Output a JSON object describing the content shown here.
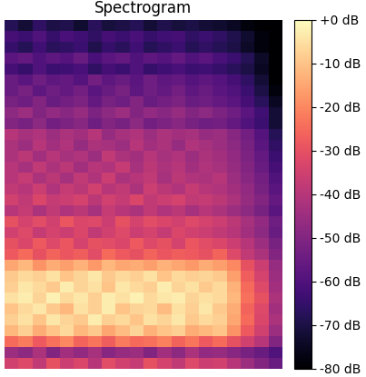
{
  "chart_data": {
    "type": "heatmap",
    "title": "Spectrogram",
    "tick_labels": false,
    "cells": [
      [
        -35,
        -32,
        -38,
        -30,
        -36,
        -33,
        -40,
        -31,
        -35,
        -37,
        -30,
        -34,
        -38,
        -32,
        -36,
        -35,
        -40,
        -45,
        -50,
        -55
      ],
      [
        -45,
        -48,
        -42,
        -50,
        -44,
        -47,
        -43,
        -49,
        -46,
        -45,
        -50,
        -44,
        -48,
        -42,
        -47,
        -46,
        -49,
        -52,
        -55,
        -60
      ],
      [
        -25,
        -22,
        -28,
        -24,
        -20,
        -26,
        -23,
        -27,
        -22,
        -25,
        -24,
        -21,
        -26,
        -23,
        -28,
        -25,
        -30,
        -35,
        -40,
        -50
      ],
      [
        -12,
        -8,
        -14,
        -10,
        -6,
        -12,
        -9,
        -15,
        -11,
        -7,
        -13,
        -10,
        -8,
        -14,
        -12,
        -10,
        -18,
        -28,
        -35,
        -45
      ],
      [
        -8,
        -5,
        -10,
        -4,
        -7,
        -9,
        -3,
        -8,
        -6,
        -10,
        -5,
        -7,
        -4,
        -9,
        -6,
        -8,
        -15,
        -25,
        -33,
        -42
      ],
      [
        -10,
        -6,
        -4,
        -9,
        -12,
        -5,
        -8,
        -3,
        -10,
        -7,
        -6,
        -11,
        -5,
        -8,
        -4,
        -9,
        -14,
        -26,
        -32,
        -44
      ],
      [
        -5,
        -3,
        -7,
        -2,
        -6,
        -4,
        -8,
        -3,
        -5,
        -2,
        -6,
        -4,
        -3,
        -7,
        -5,
        -6,
        -12,
        -24,
        -30,
        -42
      ],
      [
        -8,
        -4,
        -6,
        -9,
        -3,
        -7,
        -5,
        -10,
        -4,
        -6,
        -8,
        -3,
        -7,
        -5,
        -9,
        -6,
        -13,
        -25,
        -32,
        -44
      ],
      [
        -9,
        -6,
        -8,
        -5,
        -10,
        -7,
        -4,
        -9,
        -6,
        -8,
        -5,
        -10,
        -6,
        -8,
        -7,
        -9,
        -16,
        -27,
        -34,
        -45
      ],
      [
        -15,
        -12,
        -18,
        -14,
        -16,
        -13,
        -17,
        -12,
        -15,
        -14,
        -16,
        -13,
        -15,
        -17,
        -14,
        -16,
        -20,
        -30,
        -36,
        -46
      ],
      [
        -28,
        -25,
        -30,
        -26,
        -29,
        -27,
        -31,
        -25,
        -28,
        -30,
        -26,
        -29,
        -27,
        -28,
        -30,
        -26,
        -32,
        -38,
        -42,
        -50
      ],
      [
        -30,
        -33,
        -28,
        -32,
        -29,
        -34,
        -30,
        -31,
        -33,
        -28,
        -32,
        -30,
        -34,
        -29,
        -31,
        -33,
        -36,
        -40,
        -45,
        -52
      ],
      [
        -35,
        -32,
        -37,
        -34,
        -36,
        -33,
        -38,
        -35,
        -32,
        -36,
        -34,
        -37,
        -33,
        -35,
        -36,
        -38,
        -40,
        -44,
        -48,
        -55
      ],
      [
        -30,
        -34,
        -31,
        -35,
        -29,
        -33,
        -32,
        -36,
        -30,
        -34,
        -31,
        -33,
        -35,
        -32,
        -34,
        -36,
        -39,
        -43,
        -47,
        -54
      ],
      [
        -40,
        -37,
        -42,
        -38,
        -41,
        -39,
        -43,
        -37,
        -40,
        -42,
        -38,
        -41,
        -39,
        -43,
        -40,
        -42,
        -45,
        -48,
        -52,
        -58
      ],
      [
        -35,
        -38,
        -33,
        -37,
        -36,
        -34,
        -39,
        -35,
        -37,
        -33,
        -38,
        -36,
        -34,
        -38,
        -37,
        -39,
        -42,
        -46,
        -50,
        -56
      ],
      [
        -38,
        -40,
        -36,
        -41,
        -37,
        -39,
        -35,
        -40,
        -38,
        -42,
        -36,
        -39,
        -41,
        -37,
        -40,
        -41,
        -44,
        -47,
        -52,
        -58
      ],
      [
        -40,
        -37,
        -42,
        -39,
        -43,
        -38,
        -41,
        -36,
        -42,
        -40,
        -38,
        -43,
        -39,
        -41,
        -42,
        -40,
        -45,
        -49,
        -53,
        -60
      ],
      [
        -40,
        -43,
        -38,
        -42,
        -39,
        -44,
        -40,
        -41,
        -37,
        -43,
        -39,
        -42,
        -40,
        -44,
        -41,
        -43,
        -46,
        -50,
        -55,
        -62
      ],
      [
        -42,
        -39,
        -44,
        -40,
        -43,
        -41,
        -45,
        -38,
        -42,
        -44,
        -40,
        -43,
        -41,
        -45,
        -42,
        -44,
        -47,
        -51,
        -56,
        -64
      ],
      [
        -42,
        -45,
        -40,
        -44,
        -41,
        -46,
        -42,
        -43,
        -45,
        -40,
        -44,
        -42,
        -46,
        -41,
        -43,
        -45,
        -48,
        -52,
        -58,
        -66
      ],
      [
        -40,
        -43,
        -41,
        -45,
        -42,
        -44,
        -40,
        -46,
        -43,
        -41,
        -45,
        -42,
        -44,
        -43,
        -46,
        -45,
        -49,
        -53,
        -59,
        -68
      ],
      [
        -50,
        -52,
        -48,
        -53,
        -51,
        -49,
        -54,
        -50,
        -52,
        -48,
        -53,
        -51,
        -49,
        -52,
        -54,
        -53,
        -56,
        -60,
        -64,
        -72
      ],
      [
        -48,
        -45,
        -50,
        -47,
        -49,
        -46,
        -51,
        -48,
        -45,
        -50,
        -47,
        -49,
        -46,
        -50,
        -48,
        -51,
        -54,
        -58,
        -63,
        -72
      ],
      [
        -52,
        -54,
        -50,
        -55,
        -53,
        -51,
        -56,
        -52,
        -54,
        -50,
        -55,
        -53,
        -51,
        -55,
        -54,
        -56,
        -58,
        -62,
        -67,
        -75
      ],
      [
        -55,
        -52,
        -57,
        -54,
        -56,
        -53,
        -58,
        -55,
        -52,
        -57,
        -54,
        -56,
        -53,
        -57,
        -55,
        -58,
        -60,
        -64,
        -70,
        -78
      ],
      [
        -55,
        -58,
        -54,
        -57,
        -56,
        -59,
        -53,
        -57,
        -55,
        -58,
        -54,
        -57,
        -56,
        -59,
        -57,
        -59,
        -62,
        -66,
        -72,
        -80
      ],
      [
        -62,
        -65,
        -60,
        -64,
        -63,
        -61,
        -66,
        -62,
        -64,
        -60,
        -65,
        -63,
        -61,
        -64,
        -63,
        -65,
        -67,
        -70,
        -75,
        -80
      ],
      [
        -58,
        -56,
        -60,
        -57,
        -59,
        -55,
        -61,
        -58,
        -56,
        -60,
        -57,
        -59,
        -56,
        -60,
        -58,
        -61,
        -64,
        -68,
        -74,
        -80
      ],
      [
        -65,
        -68,
        -63,
        -67,
        -66,
        -64,
        -69,
        -65,
        -67,
        -63,
        -68,
        -66,
        -64,
        -68,
        -66,
        -68,
        -70,
        -74,
        -78,
        -80
      ],
      [
        -62,
        -64,
        -60,
        -65,
        -61,
        -63,
        -66,
        -62,
        -64,
        -61,
        -65,
        -63,
        -62,
        -66,
        -64,
        -66,
        -69,
        -73,
        -78,
        -80
      ],
      [
        -68,
        -72,
        -66,
        -70,
        -69,
        -73,
        -67,
        -71,
        -70,
        -68,
        -72,
        -69,
        -71,
        -70,
        -72,
        -73,
        -75,
        -78,
        -80,
        -80
      ]
    ],
    "colorbar": {
      "lim": [
        -80,
        0
      ],
      "ticks": [
        {
          "value": 0,
          "label": "+0 dB"
        },
        {
          "value": -10,
          "label": "-10 dB"
        },
        {
          "value": -20,
          "label": "-20 dB"
        },
        {
          "value": -30,
          "label": "-30 dB"
        },
        {
          "value": -40,
          "label": "-40 dB"
        },
        {
          "value": -50,
          "label": "-50 dB"
        },
        {
          "value": -60,
          "label": "-60 dB"
        },
        {
          "value": -70,
          "label": "-70 dB"
        },
        {
          "value": -80,
          "label": "-80 dB"
        }
      ]
    }
  }
}
